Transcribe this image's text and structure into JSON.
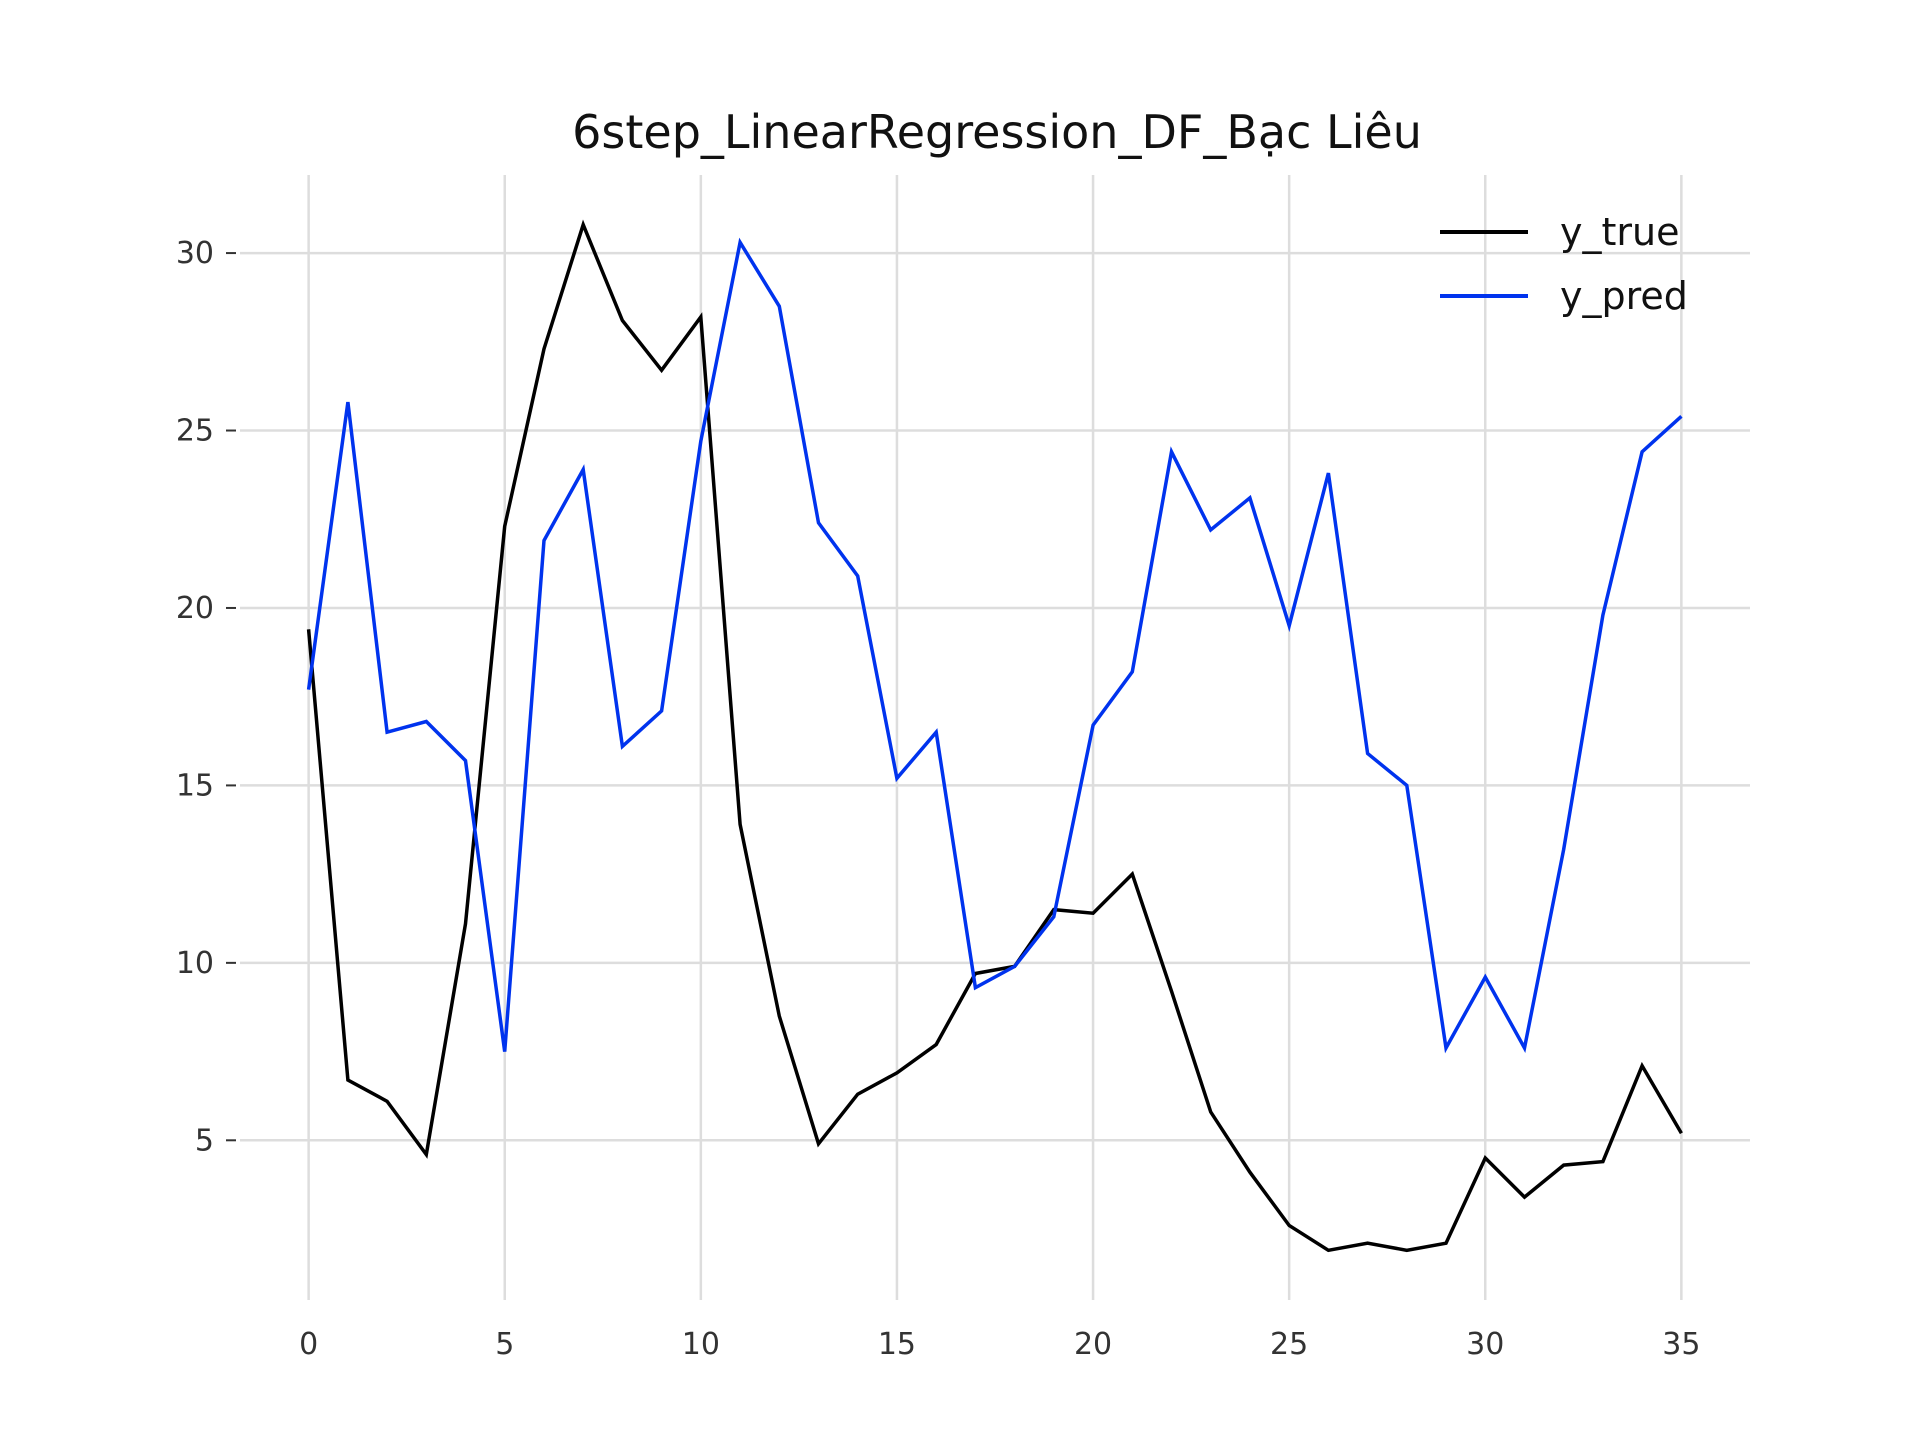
{
  "chart_data": {
    "type": "line",
    "title": "6step_LinearRegression_DF_Bạc Liêu",
    "xlabel": "",
    "ylabel": "",
    "xlim": [
      -1.75,
      36.75
    ],
    "ylim": [
      0.5,
      32.2
    ],
    "xticks": [
      0,
      5,
      10,
      15,
      20,
      25,
      30,
      35
    ],
    "yticks": [
      5,
      10,
      15,
      20,
      25,
      30
    ],
    "grid": true,
    "legend_position": "top-right",
    "x": [
      0,
      1,
      2,
      3,
      4,
      5,
      6,
      7,
      8,
      9,
      10,
      11,
      12,
      13,
      14,
      15,
      16,
      17,
      18,
      19,
      20,
      21,
      22,
      23,
      24,
      25,
      26,
      27,
      28,
      29,
      30,
      31,
      32,
      33,
      34,
      35
    ],
    "series": [
      {
        "name": "y_true",
        "color": "#000000",
        "values": [
          19.4,
          6.7,
          6.1,
          4.6,
          11.1,
          22.3,
          27.3,
          30.8,
          28.1,
          26.7,
          28.2,
          13.9,
          8.5,
          4.9,
          6.3,
          6.9,
          7.7,
          9.7,
          9.9,
          11.5,
          11.4,
          12.5,
          9.2,
          5.8,
          4.1,
          2.6,
          1.9,
          2.1,
          1.9,
          2.1,
          4.5,
          3.4,
          4.3,
          4.4,
          7.1,
          5.2
        ]
      },
      {
        "name": "y_pred",
        "color": "#0033ee",
        "values": [
          17.7,
          25.8,
          16.5,
          16.8,
          15.7,
          7.5,
          21.9,
          23.9,
          16.1,
          17.1,
          24.7,
          30.3,
          28.5,
          22.4,
          20.9,
          15.2,
          16.5,
          9.3,
          9.9,
          11.3,
          16.7,
          18.2,
          24.4,
          22.2,
          23.1,
          19.5,
          23.8,
          15.9,
          15.0,
          7.6,
          9.6,
          7.6,
          13.2,
          19.8,
          24.4,
          25.4
        ]
      }
    ]
  }
}
